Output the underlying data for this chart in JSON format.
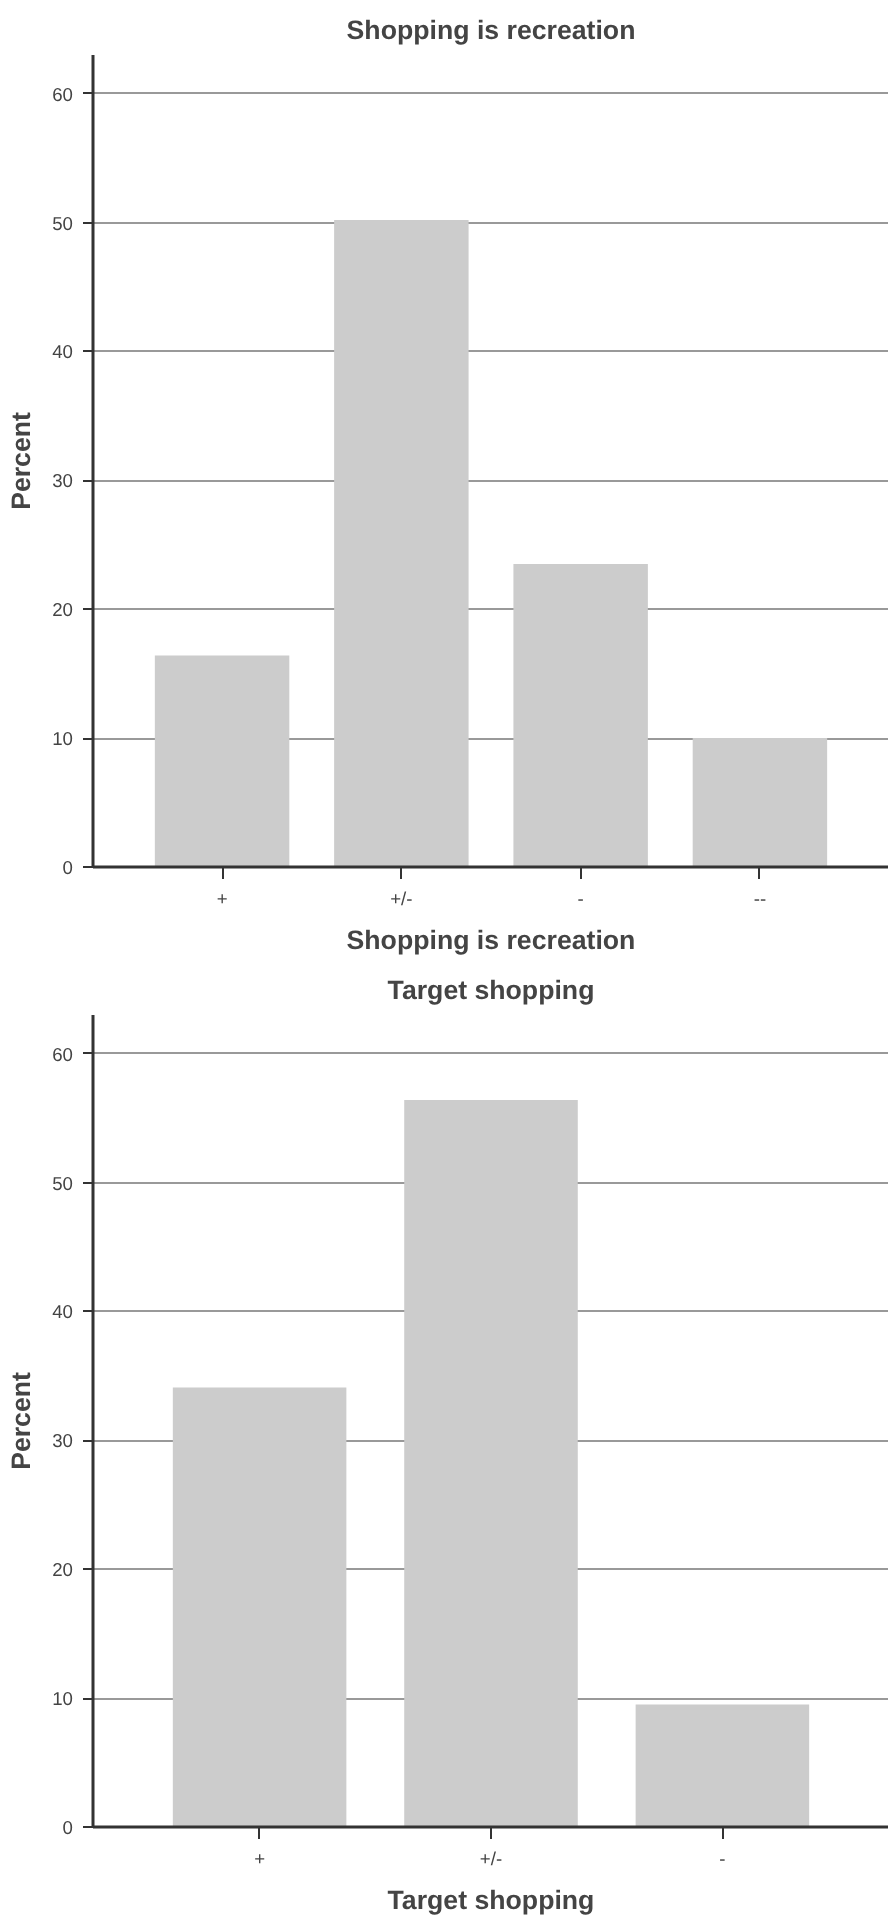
{
  "chart_data": [
    {
      "type": "bar",
      "title": "Shopping is recreation",
      "xlabel": "Shopping is recreation",
      "ylabel": "Percent",
      "categories": [
        "+",
        "+/-",
        "-",
        "--"
      ],
      "values": [
        16.4,
        50.2,
        23.5,
        10.0
      ],
      "color": "#cccccc",
      "ylim": [
        0,
        63
      ],
      "yticks": [
        0,
        10,
        20,
        30,
        40,
        50,
        60
      ],
      "grid": "y",
      "legend": false
    },
    {
      "type": "bar",
      "title": "Target shopping",
      "xlabel": "Target shopping",
      "ylabel": "Percent",
      "categories": [
        "+",
        "+/-",
        "-"
      ],
      "values": [
        34.1,
        56.4,
        9.5
      ],
      "color": "#cccccc",
      "ylim": [
        0,
        63
      ],
      "yticks": [
        0,
        10,
        20,
        30,
        40,
        50,
        60
      ],
      "grid": "y",
      "legend": false
    }
  ]
}
